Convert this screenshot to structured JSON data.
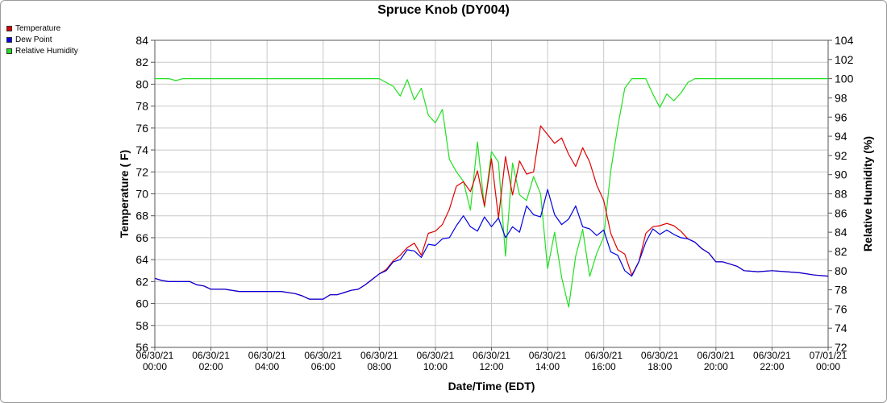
{
  "chart_data": {
    "type": "line",
    "title": "Spruce Knob (DY004)",
    "xlabel": "Date/Time (EDT)",
    "ylabel": "Temperature ( F)",
    "y2label": "Relative Humidity (%)",
    "ylim": [
      56,
      84
    ],
    "y2lim": [
      72,
      104
    ],
    "yticks": [
      56,
      58,
      60,
      62,
      64,
      66,
      68,
      70,
      72,
      74,
      76,
      78,
      80,
      82,
      84
    ],
    "y2ticks": [
      72,
      74,
      76,
      78,
      80,
      82,
      84,
      86,
      88,
      90,
      92,
      94,
      96,
      98,
      100,
      102,
      104
    ],
    "xlim_hours": [
      0,
      24
    ],
    "xticks": [
      {
        "hour": 0,
        "date": "06/30/21",
        "time": "00:00"
      },
      {
        "hour": 2,
        "date": "06/30/21",
        "time": "02:00"
      },
      {
        "hour": 4,
        "date": "06/30/21",
        "time": "04:00"
      },
      {
        "hour": 6,
        "date": "06/30/21",
        "time": "06:00"
      },
      {
        "hour": 8,
        "date": "06/30/21",
        "time": "08:00"
      },
      {
        "hour": 10,
        "date": "06/30/21",
        "time": "10:00"
      },
      {
        "hour": 12,
        "date": "06/30/21",
        "time": "12:00"
      },
      {
        "hour": 14,
        "date": "06/30/21",
        "time": "14:00"
      },
      {
        "hour": 16,
        "date": "06/30/21",
        "time": "16:00"
      },
      {
        "hour": 18,
        "date": "06/30/21",
        "time": "18:00"
      },
      {
        "hour": 20,
        "date": "06/30/21",
        "time": "20:00"
      },
      {
        "hour": 22,
        "date": "06/30/21",
        "time": "22:00"
      },
      {
        "hour": 24,
        "date": "07/01/21",
        "time": "00:00"
      }
    ],
    "grid": true,
    "legend_position": "top-left",
    "series": [
      {
        "name": "Temperature",
        "color": "#e00000",
        "axis": "left",
        "x": [
          0,
          0.25,
          0.5,
          0.75,
          1,
          1.25,
          1.5,
          1.75,
          2,
          2.25,
          2.5,
          3,
          4,
          4.5,
          5,
          5.25,
          5.5,
          5.75,
          6,
          6.25,
          6.5,
          6.75,
          7,
          7.25,
          7.5,
          7.75,
          8,
          8.25,
          8.5,
          8.75,
          9,
          9.25,
          9.5,
          9.75,
          10,
          10.25,
          10.5,
          10.75,
          11,
          11.25,
          11.5,
          11.75,
          12,
          12.25,
          12.5,
          12.75,
          13,
          13.25,
          13.5,
          13.75,
          14,
          14.25,
          14.5,
          14.75,
          15,
          15.25,
          15.5,
          15.75,
          16,
          16.25,
          16.5,
          16.75,
          17,
          17.25,
          17.5,
          17.75,
          18,
          18.25,
          18.5,
          18.75,
          19,
          19.25,
          19.5,
          19.75,
          20,
          20.25,
          20.5,
          20.75,
          21,
          21.5,
          22,
          22.5,
          23,
          23.5,
          24
        ],
        "values": [
          62.3,
          62.1,
          62.0,
          62.0,
          62.0,
          62.0,
          61.7,
          61.6,
          61.3,
          61.3,
          61.3,
          61.1,
          61.1,
          61.1,
          60.9,
          60.7,
          60.4,
          60.4,
          60.4,
          60.8,
          60.8,
          61.0,
          61.2,
          61.3,
          61.7,
          62.2,
          62.7,
          63.1,
          63.9,
          64.4,
          65.1,
          65.5,
          64.4,
          66.4,
          66.6,
          67.2,
          68.6,
          70.7,
          71.1,
          70.2,
          72.1,
          68.9,
          73.2,
          67.8,
          73.4,
          69.9,
          73.0,
          71.8,
          72.0,
          76.2,
          75.4,
          74.6,
          75.1,
          73.6,
          72.5,
          74.2,
          72.9,
          70.8,
          69.4,
          66.4,
          64.9,
          64.5,
          62.6,
          63.8,
          66.4,
          67.0,
          67.1,
          67.3,
          67.1,
          66.6,
          65.9,
          65.6,
          65.0,
          64.6,
          63.8,
          63.8,
          63.6,
          63.4,
          63.0,
          62.9,
          63.0,
          62.9,
          62.8,
          62.6,
          62.5
        ]
      },
      {
        "name": "Dew Point",
        "color": "#0000e0",
        "axis": "left",
        "x": [
          0,
          0.25,
          0.5,
          0.75,
          1,
          1.25,
          1.5,
          1.75,
          2,
          2.25,
          2.5,
          3,
          4,
          4.5,
          5,
          5.25,
          5.5,
          5.75,
          6,
          6.25,
          6.5,
          6.75,
          7,
          7.25,
          7.5,
          7.75,
          8,
          8.25,
          8.5,
          8.75,
          9,
          9.25,
          9.5,
          9.75,
          10,
          10.25,
          10.5,
          10.75,
          11,
          11.25,
          11.5,
          11.75,
          12,
          12.25,
          12.5,
          12.75,
          13,
          13.25,
          13.5,
          13.75,
          14,
          14.25,
          14.5,
          14.75,
          15,
          15.25,
          15.5,
          15.75,
          16,
          16.25,
          16.5,
          16.75,
          17,
          17.25,
          17.5,
          17.75,
          18,
          18.25,
          18.5,
          18.75,
          19,
          19.25,
          19.5,
          19.75,
          20,
          20.25,
          20.5,
          20.75,
          21,
          21.5,
          22,
          22.5,
          23,
          23.5,
          24
        ],
        "values": [
          62.3,
          62.1,
          62.0,
          62.0,
          62.0,
          62.0,
          61.7,
          61.6,
          61.3,
          61.3,
          61.3,
          61.1,
          61.1,
          61.1,
          60.9,
          60.7,
          60.4,
          60.4,
          60.4,
          60.8,
          60.8,
          61.0,
          61.2,
          61.3,
          61.7,
          62.2,
          62.7,
          63.0,
          63.8,
          64.0,
          64.9,
          64.8,
          64.2,
          65.4,
          65.3,
          65.9,
          66.0,
          67.1,
          68.0,
          67.0,
          66.6,
          67.9,
          67.0,
          67.8,
          66.0,
          67.0,
          66.5,
          68.9,
          68.1,
          67.9,
          70.4,
          68.1,
          67.2,
          67.7,
          68.9,
          67.0,
          66.8,
          66.2,
          66.7,
          64.7,
          64.4,
          63.0,
          62.5,
          63.8,
          65.6,
          66.8,
          66.3,
          66.7,
          66.3,
          66.0,
          65.9,
          65.6,
          65.0,
          64.6,
          63.8,
          63.8,
          63.6,
          63.4,
          63.0,
          62.9,
          63.0,
          62.9,
          62.8,
          62.6,
          62.5
        ]
      },
      {
        "name": "Relative Humidity",
        "color": "#20e020",
        "axis": "right",
        "x": [
          0,
          0.5,
          0.75,
          1,
          2,
          4,
          6,
          8,
          8.25,
          8.5,
          8.75,
          9,
          9.25,
          9.5,
          9.75,
          10,
          10.25,
          10.5,
          10.75,
          11,
          11.25,
          11.5,
          11.75,
          12,
          12.25,
          12.5,
          12.75,
          13,
          13.25,
          13.5,
          13.75,
          14,
          14.25,
          14.5,
          14.75,
          15,
          15.25,
          15.5,
          15.75,
          16,
          16.25,
          16.5,
          16.75,
          17,
          17.25,
          17.5,
          17.75,
          18,
          18.25,
          18.5,
          18.75,
          19,
          19.25,
          19.5,
          20,
          22,
          24
        ],
        "values": [
          100,
          100,
          99.8,
          100,
          100,
          100,
          100,
          100,
          99.6,
          99.2,
          98.2,
          99.9,
          97.8,
          99.0,
          96.2,
          95.4,
          96.8,
          91.6,
          90.3,
          89.3,
          86.3,
          93.4,
          86.6,
          92.4,
          91.3,
          81.5,
          91.2,
          87.9,
          87.3,
          89.8,
          88.0,
          80.2,
          84.0,
          79.3,
          76.2,
          81.5,
          84.3,
          79.4,
          81.8,
          83.5,
          90.4,
          95.0,
          99.0,
          100,
          100,
          100,
          98.4,
          97.0,
          98.4,
          97.7,
          98.5,
          99.6,
          100,
          100,
          100,
          100,
          100
        ]
      }
    ]
  }
}
